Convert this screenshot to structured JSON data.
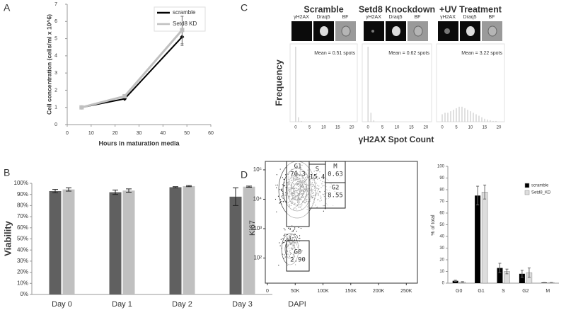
{
  "chart_data": [
    {
      "panel": "A",
      "type": "line",
      "xlabel": "Hours in maturation media",
      "ylabel": "Cell concentration (cells/ml x 10^6)",
      "x": [
        6,
        24,
        48
      ],
      "xlim": [
        0,
        60
      ],
      "xticks": [
        0,
        10,
        20,
        30,
        40,
        50,
        60
      ],
      "ylim": [
        0,
        7
      ],
      "yticks": [
        0,
        1,
        2,
        3,
        4,
        5,
        6,
        7
      ],
      "series": [
        {
          "name": "scramble",
          "color": "#000000",
          "values": [
            1,
            1.5,
            5.1
          ],
          "errors": [
            0.05,
            0.05,
            0.5
          ]
        },
        {
          "name": "Setd8 KD",
          "color": "#c0c0c0",
          "values": [
            1,
            1.65,
            5.5
          ],
          "errors": [
            0.05,
            0.1,
            0.8
          ]
        }
      ],
      "legend": "upper-right"
    },
    {
      "panel": "B",
      "type": "bar",
      "ylabel": "Viability",
      "categories": [
        "Day 0",
        "Day 1",
        "Day 2",
        "Day 3"
      ],
      "series": [
        {
          "color": "#606060",
          "values": [
            93,
            92,
            96.5,
            88
          ],
          "errors": [
            1.5,
            2,
            0.5,
            8
          ]
        },
        {
          "color": "#c0c0c0",
          "values": [
            94.5,
            93.5,
            97.5,
            97
          ],
          "errors": [
            1.5,
            1.5,
            0.5,
            0.5
          ]
        }
      ],
      "ylim": [
        0,
        100
      ],
      "yticks": [
        {
          "value": 0,
          "label": "0%"
        },
        {
          "value": 10,
          "label": "10%"
        },
        {
          "value": 20,
          "label": "20%"
        },
        {
          "value": 30,
          "label": "30%"
        },
        {
          "value": 40,
          "label": "40%"
        },
        {
          "value": 50,
          "label": "50%"
        },
        {
          "value": 60,
          "label": "60%"
        },
        {
          "value": 70,
          "label": "70%"
        },
        {
          "value": 80,
          "label": "80%"
        },
        {
          "value": 90,
          "label": "90%"
        },
        {
          "value": 100,
          "label": "100%"
        }
      ]
    },
    {
      "panel": "C",
      "type": "histogram",
      "ylabel": "Frequency",
      "xlabel": "γH2AX Spot Count",
      "channels": [
        "γH2AX",
        "Draq5",
        "BF"
      ],
      "x": [
        0,
        1,
        2,
        3,
        4,
        5,
        6,
        7,
        8,
        9,
        10,
        11,
        12,
        13,
        14,
        15,
        16,
        17,
        18,
        19,
        20
      ],
      "xlim": [
        -2,
        22
      ],
      "xticks": [
        0,
        5,
        10,
        15,
        20
      ],
      "ylim": [
        0,
        100
      ],
      "color": "#cccccc",
      "panels": [
        {
          "title": "Scramble",
          "mean_label": "Mean = 0.51 spots",
          "values": [
            100,
            6,
            1,
            0,
            0,
            0,
            0,
            0,
            0,
            0,
            0,
            0,
            0,
            0,
            0,
            0,
            0,
            0,
            0,
            0,
            0
          ]
        },
        {
          "title": "Setd8 Knockdown",
          "mean_label": "Mean = 0.62 spots",
          "values": [
            100,
            12,
            2,
            0,
            0,
            0,
            0,
            0,
            0,
            0,
            0,
            0,
            0,
            0,
            0,
            0,
            0,
            0,
            0,
            0,
            0
          ]
        },
        {
          "title": "+UV Treatment",
          "mean_label": "Mean = 3.22 spots",
          "values": [
            10,
            12,
            12,
            14,
            16,
            18,
            20,
            20,
            18,
            16,
            14,
            12,
            10,
            8,
            6,
            4,
            3,
            2,
            1,
            1,
            0
          ]
        }
      ]
    },
    {
      "panel": "D",
      "type": "gate-plot",
      "xlabel": "DAPI",
      "ylabel": "Ki67",
      "xlim": [
        0,
        270000
      ],
      "xticks": [
        {
          "value": 0,
          "label": "0"
        },
        {
          "value": 50000,
          "label": "50K"
        },
        {
          "value": 100000,
          "label": "100K"
        },
        {
          "value": 150000,
          "label": "150K"
        },
        {
          "value": 200000,
          "label": "200K"
        },
        {
          "value": 250000,
          "label": "250K"
        }
      ],
      "ylim": [
        14,
        194000
      ],
      "log_y": true,
      "yticks": [
        {
          "value": 100,
          "label": "10²"
        },
        {
          "value": 1000,
          "label": "10³"
        },
        {
          "value": 10000,
          "label": "10⁴"
        },
        {
          "value": 100000,
          "label": "10⁵"
        }
      ],
      "gate_names": [
        "G1",
        "S",
        "G2",
        "M",
        "G0"
      ],
      "gate_values": [
        70.3,
        15.4,
        8.55,
        0.63,
        2.9
      ],
      "value_labels": [
        "70.3",
        "15.4",
        "8.55",
        "0.63",
        "2.90"
      ]
    },
    {
      "type": "bar",
      "ylabel": "% of total",
      "categories": [
        "G0",
        "G1",
        "S",
        "G2",
        "M"
      ],
      "series": [
        {
          "name": "scramble",
          "color": "#000000",
          "values": [
            2,
            75,
            13,
            8,
            0.5
          ],
          "errors": [
            0.5,
            8,
            4,
            3,
            0
          ]
        },
        {
          "name": "Setd8_KD",
          "color": "#dddddd",
          "values": [
            1,
            78,
            10,
            9,
            0.5
          ],
          "errors": [
            0.3,
            6,
            2,
            4,
            0
          ]
        }
      ],
      "ylim": [
        0,
        100
      ],
      "yticks": [
        0,
        10,
        20,
        30,
        40,
        50,
        60,
        70,
        80,
        90,
        100
      ],
      "legend": "upper-right"
    }
  ]
}
